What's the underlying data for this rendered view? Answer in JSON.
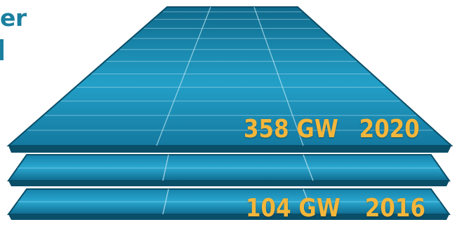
{
  "heading": {
    "visible_fragment": "er"
  },
  "colors": {
    "heading": "#1b7fa0",
    "label": "#f3b63b",
    "panel_light": "#34b0d6",
    "panel_dark": "#0c5f7e",
    "panel_edge": "#0a4e68"
  },
  "panels": [
    {
      "gigawatts": "358 GW",
      "year": "2020"
    },
    {
      "gigawatts": "",
      "year": ""
    },
    {
      "gigawatts": "104 GW",
      "year": "2016"
    }
  ]
}
